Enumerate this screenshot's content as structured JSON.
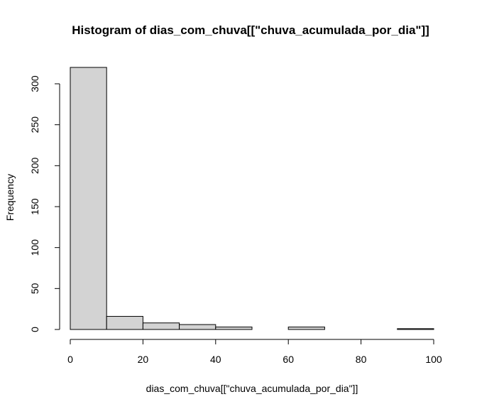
{
  "chart_data": {
    "type": "bar",
    "subtype": "histogram",
    "title": "Histogram of dias_com_chuva[[\"chuva_acumulada_por_dia\"]]",
    "xlabel": "dias_com_chuva[[\"chuva_acumulada_por_dia\"]]",
    "ylabel": "Frequency",
    "bins": [
      {
        "x0": 0,
        "x1": 10,
        "count": 320
      },
      {
        "x0": 10,
        "x1": 20,
        "count": 16
      },
      {
        "x0": 20,
        "x1": 30,
        "count": 8
      },
      {
        "x0": 30,
        "x1": 40,
        "count": 6
      },
      {
        "x0": 40,
        "x1": 50,
        "count": 3
      },
      {
        "x0": 50,
        "x1": 60,
        "count": 0
      },
      {
        "x0": 60,
        "x1": 70,
        "count": 3
      },
      {
        "x0": 70,
        "x1": 80,
        "count": 0
      },
      {
        "x0": 80,
        "x1": 90,
        "count": 0
      },
      {
        "x0": 90,
        "x1": 100,
        "count": 1
      }
    ],
    "xlim": [
      0,
      100
    ],
    "ylim": [
      0,
      320
    ],
    "xticks": [
      0,
      20,
      40,
      60,
      80,
      100
    ],
    "yticks": [
      0,
      50,
      100,
      150,
      200,
      250,
      300
    ],
    "grid": false,
    "legend": "none",
    "colors": {
      "bar_fill": "#d3d3d3",
      "bar_stroke": "#000000",
      "axis": "#000000",
      "text": "#000000"
    }
  }
}
